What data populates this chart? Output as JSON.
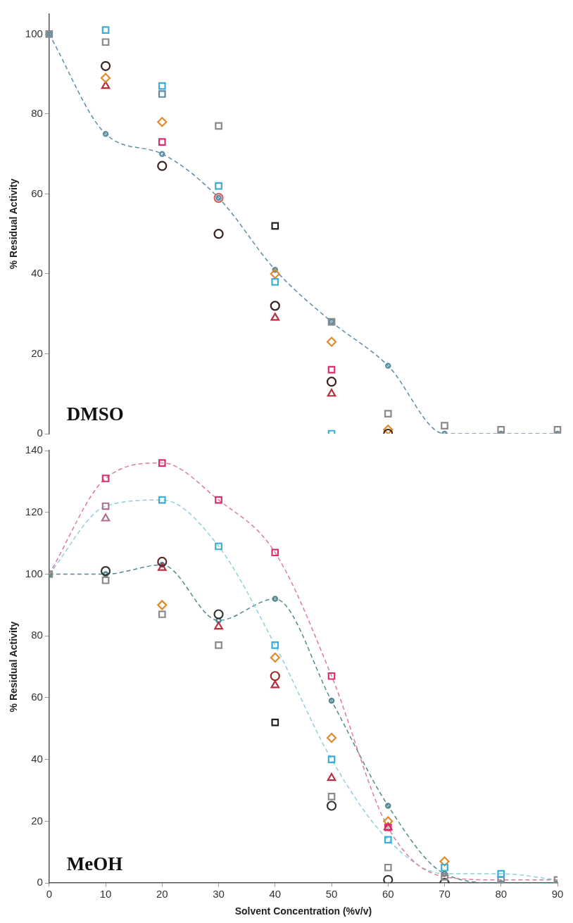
{
  "chart_data": [
    {
      "type": "scatter",
      "ylabel": "% Residual Activity",
      "annotations": [
        "DMSO"
      ],
      "tick_labels": "y",
      "categories": [
        null,
        null,
        null,
        null,
        null,
        null,
        null,
        null,
        null,
        null
      ],
      "ylim": [
        0,
        105
      ],
      "yticks": [
        0,
        20,
        40,
        60,
        80,
        100
      ],
      "series": [
        {
          "type": "line",
          "color": "#5b8fa8",
          "marker": "circle",
          "line_style": "dashed",
          "values": [
            100,
            75,
            70,
            59,
            41,
            28,
            17,
            0,
            0,
            0
          ]
        },
        {
          "color": "#8a8a8a",
          "marker": "square",
          "values": [
            100,
            98,
            null,
            77,
            null,
            28,
            5,
            2,
            1,
            1
          ]
        },
        {
          "color": "#3aaed8",
          "marker": "square",
          "values": [
            null,
            101,
            87,
            62,
            38,
            0,
            null,
            null,
            null,
            null
          ]
        },
        {
          "color": "#5b8aa8",
          "marker": "square",
          "values": [
            null,
            null,
            85,
            null,
            null,
            null,
            null,
            null,
            null,
            null
          ]
        },
        {
          "color": "#222222",
          "marker": "square",
          "values": [
            null,
            null,
            null,
            null,
            52,
            null,
            null,
            null,
            null,
            null
          ]
        },
        {
          "color": "#3a2020",
          "marker": "circle",
          "values": [
            null,
            92,
            67,
            50,
            32,
            13,
            0,
            null,
            null,
            null
          ]
        },
        {
          "color": "#e08a2a",
          "marker": "diamond",
          "values": [
            null,
            89,
            78,
            null,
            40,
            23,
            1,
            null,
            null,
            null
          ]
        },
        {
          "color": "#b83040",
          "marker": "triangle",
          "values": [
            null,
            87,
            null,
            null,
            29,
            10,
            null,
            null,
            null,
            null
          ]
        },
        {
          "color": "#d8306e",
          "marker": "square",
          "values": [
            null,
            null,
            73,
            null,
            null,
            16,
            null,
            null,
            null,
            null
          ]
        },
        {
          "color": "#d9605a",
          "marker": "circle",
          "values": [
            null,
            null,
            null,
            59,
            null,
            null,
            null,
            null,
            null,
            null
          ]
        }
      ]
    },
    {
      "type": "scatter",
      "xlabel": "Solvent Concentration (%v/v)",
      "ylabel": "% Residual Activity",
      "annotations": [
        "MeOH"
      ],
      "x": [
        0,
        10,
        20,
        30,
        40,
        50,
        60,
        70,
        80,
        90
      ],
      "xlim": [
        0,
        90
      ],
      "xticks": [
        0,
        10,
        20,
        30,
        40,
        50,
        60,
        70,
        80,
        90
      ],
      "ylim": [
        0,
        140
      ],
      "yticks": [
        0,
        20,
        40,
        60,
        80,
        100,
        120,
        140
      ],
      "series": [
        {
          "type": "line",
          "color": "#e07a9a",
          "marker": "none",
          "line_style": "dashed",
          "values": [
            100,
            131,
            136,
            124,
            107,
            67,
            18,
            2,
            1,
            1
          ]
        },
        {
          "type": "line",
          "color": "#8fd0dc",
          "marker": "none",
          "line_style": "dashed",
          "values": [
            100,
            122,
            124,
            109,
            77,
            40,
            14,
            3,
            3,
            1
          ]
        },
        {
          "type": "line",
          "color": "#4f8a90",
          "marker": "circle",
          "line_style": "dashed",
          "values": [
            100,
            100,
            103,
            85,
            92,
            59,
            25,
            3,
            0,
            0
          ]
        },
        {
          "color": "#d8306e",
          "marker": "square",
          "values": [
            null,
            131,
            136,
            124,
            107,
            67,
            18,
            null,
            null,
            null
          ]
        },
        {
          "color": "#3aaed8",
          "marker": "square",
          "values": [
            null,
            null,
            124,
            109,
            77,
            40,
            14,
            5,
            3,
            null
          ]
        },
        {
          "color": "#b07090",
          "marker": "square",
          "values": [
            null,
            122,
            null,
            null,
            null,
            null,
            null,
            null,
            null,
            null
          ]
        },
        {
          "color": "#b07090",
          "marker": "triangle",
          "values": [
            null,
            118,
            null,
            null,
            null,
            null,
            null,
            null,
            null,
            null
          ]
        },
        {
          "color": "#8a8a8a",
          "marker": "square",
          "values": [
            100,
            98,
            87,
            77,
            null,
            28,
            5,
            2,
            1,
            1
          ]
        },
        {
          "color": "#333333",
          "marker": "circle",
          "values": [
            null,
            101,
            null,
            87,
            null,
            25,
            1,
            0,
            null,
            null
          ]
        },
        {
          "color": "#5a2a2a",
          "marker": "circle",
          "values": [
            null,
            null,
            104,
            null,
            null,
            null,
            null,
            null,
            null,
            null
          ]
        },
        {
          "color": "#a02828",
          "marker": "circle",
          "values": [
            null,
            null,
            null,
            null,
            67,
            null,
            null,
            null,
            null,
            null
          ]
        },
        {
          "color": "#b83040",
          "marker": "triangle",
          "values": [
            null,
            null,
            102,
            83,
            64,
            34,
            18,
            null,
            null,
            null
          ]
        },
        {
          "color": "#e08a2a",
          "marker": "diamond",
          "values": [
            null,
            null,
            90,
            null,
            73,
            47,
            20,
            7,
            null,
            null
          ]
        },
        {
          "color": "#222222",
          "marker": "square",
          "values": [
            null,
            null,
            null,
            null,
            52,
            null,
            null,
            null,
            null,
            null
          ]
        }
      ]
    }
  ]
}
